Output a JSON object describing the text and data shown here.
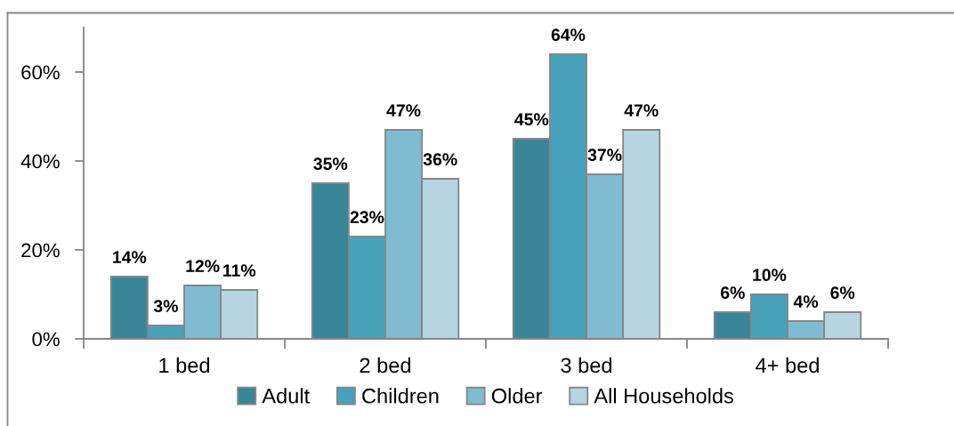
{
  "chart_data": {
    "type": "bar",
    "categories": [
      "1 bed",
      "2 bed",
      "3 bed",
      "4+ bed"
    ],
    "series": [
      {
        "name": "Adult",
        "color": "#3a8699",
        "values": [
          14,
          35,
          45,
          6
        ],
        "value_labels": [
          "14%",
          "35%",
          "45%",
          "6%"
        ]
      },
      {
        "name": "Children",
        "color": "#47a1ba",
        "values": [
          3,
          23,
          64,
          10
        ],
        "value_labels": [
          "3%",
          "23%",
          "64%",
          "10%"
        ]
      },
      {
        "name": "Older",
        "color": "#7fbbd1",
        "values": [
          12,
          47,
          37,
          4
        ],
        "value_labels": [
          "12%",
          "47%",
          "37%",
          "4%"
        ]
      },
      {
        "name": "All Households",
        "color": "#b7d5e0",
        "values": [
          11,
          36,
          47,
          6
        ],
        "value_labels": [
          "11%",
          "36%",
          "47%",
          "6%"
        ]
      }
    ],
    "ylim": [
      0,
      70
    ],
    "yticks": [
      {
        "value": 0,
        "label": "0%"
      },
      {
        "value": 20,
        "label": "20%"
      },
      {
        "value": 40,
        "label": "40%"
      },
      {
        "value": 60,
        "label": "60%"
      }
    ],
    "legend": "bottom"
  }
}
